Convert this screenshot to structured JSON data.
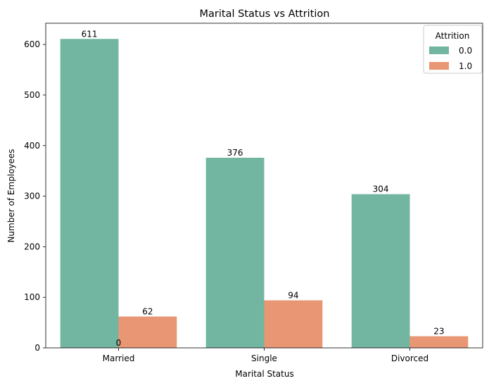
{
  "chart_data": {
    "type": "bar",
    "title": "Marital Status vs Attrition",
    "xlabel": "Marital Status",
    "ylabel": "Number of Employees",
    "categories": [
      "Married",
      "Single",
      "Divorced"
    ],
    "series": [
      {
        "name": "0.0",
        "values": [
          611,
          376,
          304
        ],
        "color": "#72b6a1"
      },
      {
        "name": "1.0",
        "values": [
          62,
          94,
          23
        ],
        "color": "#e99675"
      }
    ],
    "ylim": [
      0,
      642
    ],
    "yticks": [
      0,
      100,
      200,
      300,
      400,
      500,
      600
    ],
    "grid": false,
    "legend": {
      "title": "Attrition",
      "placement": "top-right"
    },
    "annotations": [
      {
        "text": "0",
        "x": "Married",
        "y": 0
      }
    ]
  }
}
